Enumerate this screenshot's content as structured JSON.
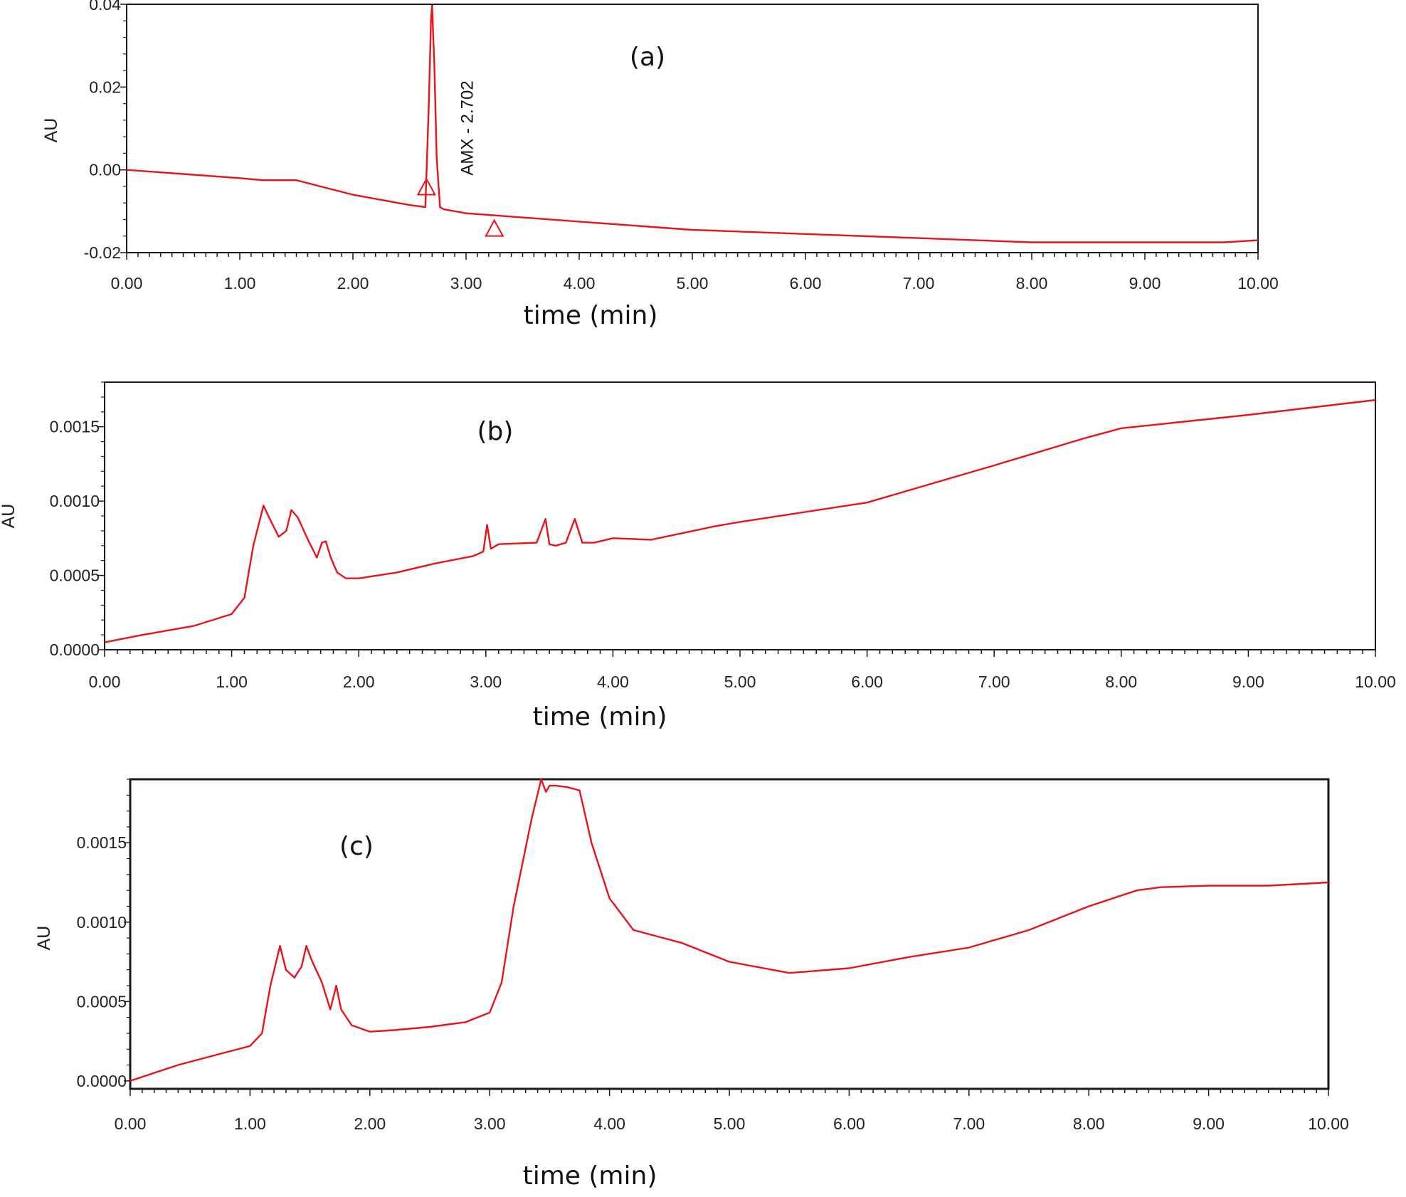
{
  "chart_data": [
    {
      "type": "line",
      "panel_label": "(a)",
      "xlabel": "time (min)",
      "ylabel": "AU",
      "xlim": [
        0,
        10
      ],
      "ylim": [
        -0.02,
        0.04
      ],
      "x_ticks": [
        "0.00",
        "1.00",
        "2.00",
        "3.00",
        "4.00",
        "5.00",
        "6.00",
        "7.00",
        "8.00",
        "9.00",
        "10.00"
      ],
      "y_ticks": [
        "-0.02",
        "0.00",
        "0.02",
        "0.04"
      ],
      "color": "#e8141b",
      "annotation": "AMX - 2.702",
      "peak_marker": "triangle",
      "peak_start_x": 2.65,
      "peak_end_x": 3.25,
      "series": [
        {
          "x": [
            0,
            0.5,
            1.0,
            1.2,
            1.5,
            2.0,
            2.5,
            2.64,
            2.67,
            2.69,
            2.7,
            2.71,
            2.72,
            2.74,
            2.77,
            2.8,
            3.0,
            3.5,
            4.0,
            5.0,
            6.0,
            7.0,
            8.0,
            9.0,
            9.7,
            10.0
          ],
          "y": [
            0.0,
            -0.001,
            -0.002,
            -0.0025,
            -0.0025,
            -0.006,
            -0.0085,
            -0.009,
            0.015,
            0.036,
            0.04,
            0.032,
            0.025,
            0.003,
            -0.009,
            -0.0095,
            -0.0105,
            -0.0115,
            -0.0125,
            -0.0145,
            -0.0155,
            -0.0165,
            -0.0175,
            -0.0175,
            -0.0175,
            -0.017
          ]
        }
      ]
    },
    {
      "type": "line",
      "panel_label": "(b)",
      "xlabel": "time (min)",
      "ylabel": "AU",
      "xlim": [
        0,
        10
      ],
      "ylim": [
        0,
        0.0018
      ],
      "x_ticks": [
        "0.00",
        "1.00",
        "2.00",
        "3.00",
        "4.00",
        "5.00",
        "6.00",
        "7.00",
        "8.00",
        "9.00",
        "10.00"
      ],
      "y_ticks": [
        "0.0000",
        "0.0005",
        "0.0010",
        "0.0015"
      ],
      "color": "#e8141b",
      "series": [
        {
          "x": [
            0,
            0.3,
            0.7,
            1.0,
            1.1,
            1.17,
            1.25,
            1.3,
            1.37,
            1.43,
            1.47,
            1.52,
            1.6,
            1.67,
            1.71,
            1.74,
            1.78,
            1.83,
            1.9,
            2.0,
            2.3,
            2.6,
            2.9,
            2.98,
            3.01,
            3.04,
            3.1,
            3.4,
            3.47,
            3.5,
            3.55,
            3.63,
            3.7,
            3.76,
            3.85,
            4.0,
            4.3,
            4.8,
            5.0,
            6.0,
            7.0,
            7.7,
            8.0,
            9.0,
            10.0
          ],
          "y": [
            5e-05,
            0.0001,
            0.00016,
            0.00024,
            0.00035,
            0.0007,
            0.00097,
            0.00088,
            0.00076,
            0.0008,
            0.00094,
            0.00089,
            0.00074,
            0.00062,
            0.00072,
            0.00073,
            0.00062,
            0.00052,
            0.00048,
            0.00048,
            0.00052,
            0.00058,
            0.00063,
            0.00066,
            0.00084,
            0.00068,
            0.00071,
            0.00072,
            0.00088,
            0.00071,
            0.0007,
            0.00072,
            0.00088,
            0.00072,
            0.00072,
            0.00075,
            0.00074,
            0.00083,
            0.00086,
            0.00099,
            0.00124,
            0.00142,
            0.00149,
            0.00158,
            0.00168
          ]
        }
      ]
    },
    {
      "type": "line",
      "panel_label": "(c)",
      "xlabel": "time (min)",
      "ylabel": "AU",
      "xlim": [
        0,
        10
      ],
      "ylim": [
        -5e-05,
        0.0019
      ],
      "x_ticks": [
        "0.00",
        "1.00",
        "2.00",
        "3.00",
        "4.00",
        "5.00",
        "6.00",
        "7.00",
        "8.00",
        "9.00",
        "10.00"
      ],
      "y_ticks": [
        "0.0000",
        "0.0005",
        "0.0010",
        "0.0015"
      ],
      "color": "#e8141b",
      "series": [
        {
          "x": [
            0,
            0.4,
            0.75,
            1.0,
            1.1,
            1.17,
            1.25,
            1.3,
            1.37,
            1.43,
            1.47,
            1.52,
            1.6,
            1.67,
            1.72,
            1.76,
            1.85,
            2.0,
            2.2,
            2.5,
            2.8,
            3.0,
            3.1,
            3.2,
            3.35,
            3.43,
            3.47,
            3.5,
            3.55,
            3.65,
            3.75,
            3.85,
            4.0,
            4.2,
            4.6,
            5.0,
            5.5,
            6.0,
            6.5,
            7.0,
            7.5,
            8.0,
            8.4,
            8.6,
            9.0,
            9.5,
            10.0
          ],
          "y": [
            0.0,
            0.0001,
            0.00017,
            0.00022,
            0.0003,
            0.0006,
            0.00085,
            0.0007,
            0.00065,
            0.00072,
            0.00085,
            0.00075,
            0.00062,
            0.00045,
            0.0006,
            0.00045,
            0.00035,
            0.00031,
            0.00032,
            0.00034,
            0.00037,
            0.00043,
            0.00062,
            0.0011,
            0.00165,
            0.0019,
            0.00182,
            0.00186,
            0.00186,
            0.00185,
            0.00183,
            0.0015,
            0.00115,
            0.00095,
            0.00087,
            0.00075,
            0.00068,
            0.00071,
            0.00078,
            0.00084,
            0.00095,
            0.0011,
            0.0012,
            0.00122,
            0.00123,
            0.00123,
            0.00125
          ]
        }
      ]
    }
  ]
}
